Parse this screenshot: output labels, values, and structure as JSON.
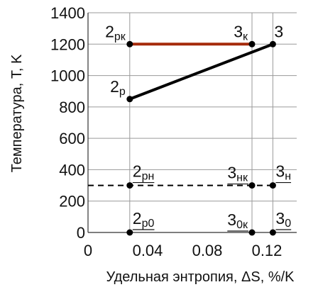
{
  "chart_data": {
    "type": "line",
    "xlabel": "Удельная энтропия, ΔS, %/K",
    "ylabel": "Температура, T, K",
    "xlim": [
      0,
      0.14
    ],
    "ylim": [
      0,
      1400
    ],
    "grid": true,
    "x_ticks": [
      0,
      0.04,
      0.08,
      0.12
    ],
    "x_tick_labels": [
      "0",
      "0.04",
      "0.08",
      "0.12"
    ],
    "y_ticks": [
      0,
      200,
      400,
      600,
      800,
      1000,
      1200,
      1400
    ],
    "y_tick_labels": [
      "0",
      "200",
      "400",
      "600",
      "800",
      "1000",
      "1200",
      "1400"
    ],
    "vertical_guides": [
      0.028,
      0.11,
      0.124
    ],
    "series": [
      {
        "color": "#a52a0a",
        "style": "solid",
        "points": [
          [
            0.028,
            1200
          ],
          [
            0.11,
            1200
          ]
        ]
      },
      {
        "color": "#000000",
        "style": "solid",
        "points": [
          [
            0.028,
            850
          ],
          [
            0.124,
            1200
          ]
        ]
      },
      {
        "color": "#000000",
        "style": "dashed",
        "points": [
          [
            0,
            300
          ],
          [
            0.124,
            300
          ]
        ]
      }
    ],
    "points": [
      {
        "id": "2pk",
        "x": 0.028,
        "y": 1200,
        "label": "2",
        "sub": "рк",
        "underline": false,
        "anchor": "above-left"
      },
      {
        "id": "3k",
        "x": 0.11,
        "y": 1200,
        "label": "3",
        "sub": "к",
        "underline": false,
        "anchor": "above-left"
      },
      {
        "id": "3",
        "x": 0.124,
        "y": 1200,
        "label": "3",
        "sub": "",
        "underline": false,
        "anchor": "above"
      },
      {
        "id": "2p",
        "x": 0.028,
        "y": 850,
        "label": "2",
        "sub": "р",
        "underline": false,
        "anchor": "above-left"
      },
      {
        "id": "2pn",
        "x": 0.028,
        "y": 300,
        "label": "2",
        "sub": "рн",
        "underline": true,
        "anchor": "above-right"
      },
      {
        "id": "3nk",
        "x": 0.11,
        "y": 300,
        "label": "3",
        "sub": "нк",
        "underline": true,
        "anchor": "above-left"
      },
      {
        "id": "3n",
        "x": 0.124,
        "y": 300,
        "label": "3",
        "sub": "н",
        "underline": true,
        "anchor": "above-right"
      },
      {
        "id": "2p0",
        "x": 0.028,
        "y": 0,
        "label": "2",
        "sub": "р0",
        "underline": true,
        "anchor": "above-right"
      },
      {
        "id": "30k",
        "x": 0.11,
        "y": 0,
        "label": "3",
        "sub": "0к",
        "underline": true,
        "anchor": "above-left"
      },
      {
        "id": "30",
        "x": 0.124,
        "y": 0,
        "label": "3",
        "sub": "0",
        "underline": true,
        "anchor": "above-right"
      }
    ],
    "colors": {
      "isobar_high": "#a52a0a",
      "process_line": "#000000",
      "grid": "#9a9a9a",
      "marker": "#000000"
    }
  }
}
